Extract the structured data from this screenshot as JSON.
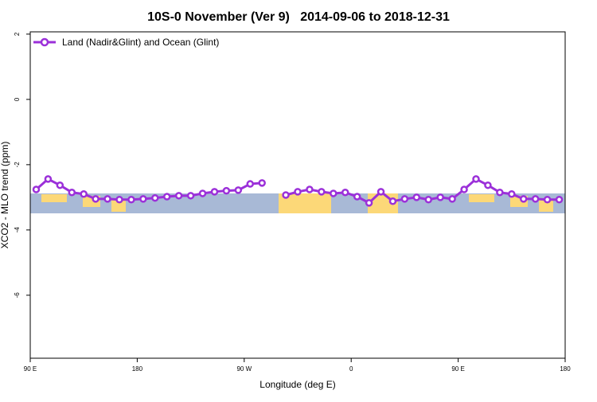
{
  "chart_data": {
    "type": "line",
    "title": "10S-0 November (Ver 9)   2014-09-06 to 2018-12-31",
    "x_label": "Longitude (deg E)",
    "y_label": "XCO2 - MLO trend (ppm)",
    "x": [
      95,
      105,
      115,
      125,
      135,
      145,
      155,
      165,
      175,
      185,
      195,
      205,
      215,
      225,
      235,
      245,
      255,
      265,
      275,
      285,
      295,
      305,
      315,
      325,
      335,
      345,
      355,
      365,
      375,
      385,
      395,
      405,
      415,
      425,
      435,
      445,
      455,
      465,
      475,
      485,
      495,
      505,
      515,
      525,
      535
    ],
    "series": [
      {
        "name": "Land (Nadir&Glint) and Ocean (Glint)",
        "color": "#9b30d9",
        "values": [
          -2.76,
          -2.44,
          -2.63,
          -2.85,
          -2.9,
          -3.05,
          -3.05,
          -3.07,
          -3.07,
          -3.05,
          -3.02,
          -2.98,
          -2.95,
          -2.95,
          -2.88,
          -2.83,
          -2.8,
          -2.78,
          -2.59,
          -2.56,
          null,
          -2.93,
          -2.83,
          -2.76,
          -2.83,
          -2.88,
          -2.85,
          -2.98,
          -3.17,
          -2.83,
          -3.12,
          -3.05,
          -3.0,
          -3.07,
          -3.0,
          -3.05,
          -2.76,
          -2.44,
          -2.63,
          -2.85,
          -2.9,
          -3.05,
          -3.05,
          -3.07,
          -3.07
        ]
      }
    ],
    "xlim": [
      90,
      540
    ],
    "ylim": [
      -7.93,
      2.07
    ],
    "xticks": [
      {
        "value": 90,
        "label": "90 E"
      },
      {
        "value": 180,
        "label": "180"
      },
      {
        "value": 270,
        "label": "90 W"
      },
      {
        "value": 360,
        "label": "0"
      },
      {
        "value": 450,
        "label": "90 E"
      },
      {
        "value": 540,
        "label": "180"
      }
    ],
    "yticks": [
      2,
      0,
      -2,
      -4,
      -6
    ],
    "legend": "top-left"
  }
}
